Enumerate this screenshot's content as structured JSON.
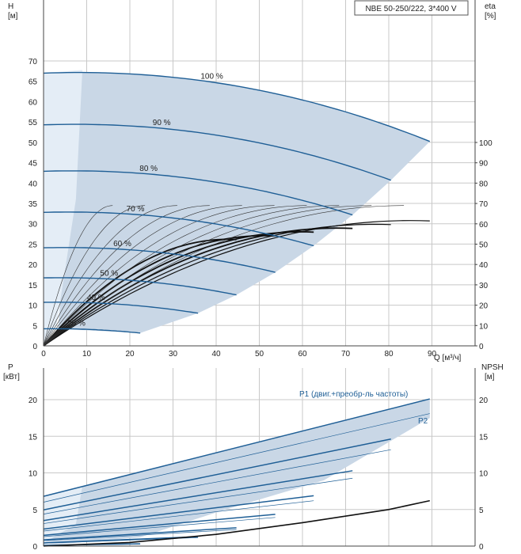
{
  "chart_data": [
    {
      "type": "line",
      "title_box": "NBE 50-250/222, 3*400 V",
      "y_label": "H",
      "y_unit": "[м]",
      "y2_label": "eta",
      "y2_unit": "[%]",
      "x_label": "Q [м³/ч]",
      "xlim": [
        0,
        100
      ],
      "ylim": [
        0,
        70
      ],
      "y2lim": [
        0,
        140
      ],
      "x_ticks": [
        "0",
        "10",
        "20",
        "30",
        "40",
        "50",
        "60",
        "70",
        "80",
        "90"
      ],
      "y_ticks": [
        "0",
        "5",
        "10",
        "15",
        "20",
        "25",
        "30",
        "35",
        "40",
        "45",
        "50",
        "55",
        "60",
        "65",
        "70"
      ],
      "y2_ticks": [
        "0",
        "10",
        "20",
        "30",
        "40",
        "50",
        "60",
        "70",
        "80",
        "90",
        "100"
      ],
      "grid": true,
      "colors": {
        "curve": "#1f5f96",
        "area": "#c9d7e6",
        "area_light": "#e4edf6",
        "eff": "#111111",
        "grid": "#c8c8c8"
      },
      "speed_curves": [
        {
          "label": "100 %",
          "h0": 67,
          "qmax": 89.5
        },
        {
          "label": "90 %",
          "h0": 54.3,
          "qmax": 80.5
        },
        {
          "label": "80 %",
          "h0": 42.9,
          "qmax": 71.6
        },
        {
          "label": "70 %",
          "h0": 32.8,
          "qmax": 62.6
        },
        {
          "label": "60 %",
          "h0": 24.1,
          "qmax": 53.7
        },
        {
          "label": "50 %",
          "h0": 16.7,
          "qmax": 44.7
        },
        {
          "label": "40 %",
          "h0": 10.7,
          "qmax": 35.8
        },
        {
          "label": "25 %",
          "h0": 4.2,
          "qmax": 22.4
        }
      ]
    },
    {
      "type": "line",
      "y_label": "P",
      "y_unit": "[кВт]",
      "y2_label": "NPSH",
      "y2_unit": "[м]",
      "xlim": [
        0,
        100
      ],
      "ylim": [
        0,
        22
      ],
      "y2lim": [
        0,
        22
      ],
      "y_ticks": [
        "0",
        "5",
        "10",
        "15",
        "20"
      ],
      "y2_ticks": [
        "0",
        "5",
        "10",
        "15",
        "20"
      ],
      "series_labels": [
        "P1 (двиг.+преобр-ль частоты)",
        "P2"
      ],
      "p1_100": [
        [
          0,
          6.8
        ],
        [
          89.5,
          20.1
        ]
      ],
      "p2_100": [
        [
          0,
          6.0
        ],
        [
          89.5,
          18.1
        ]
      ],
      "npsh": [
        [
          0,
          0
        ],
        [
          20,
          0.5
        ],
        [
          40,
          1.6
        ],
        [
          60,
          3.2
        ],
        [
          80,
          5.0
        ],
        [
          89.5,
          6.2
        ]
      ]
    }
  ]
}
